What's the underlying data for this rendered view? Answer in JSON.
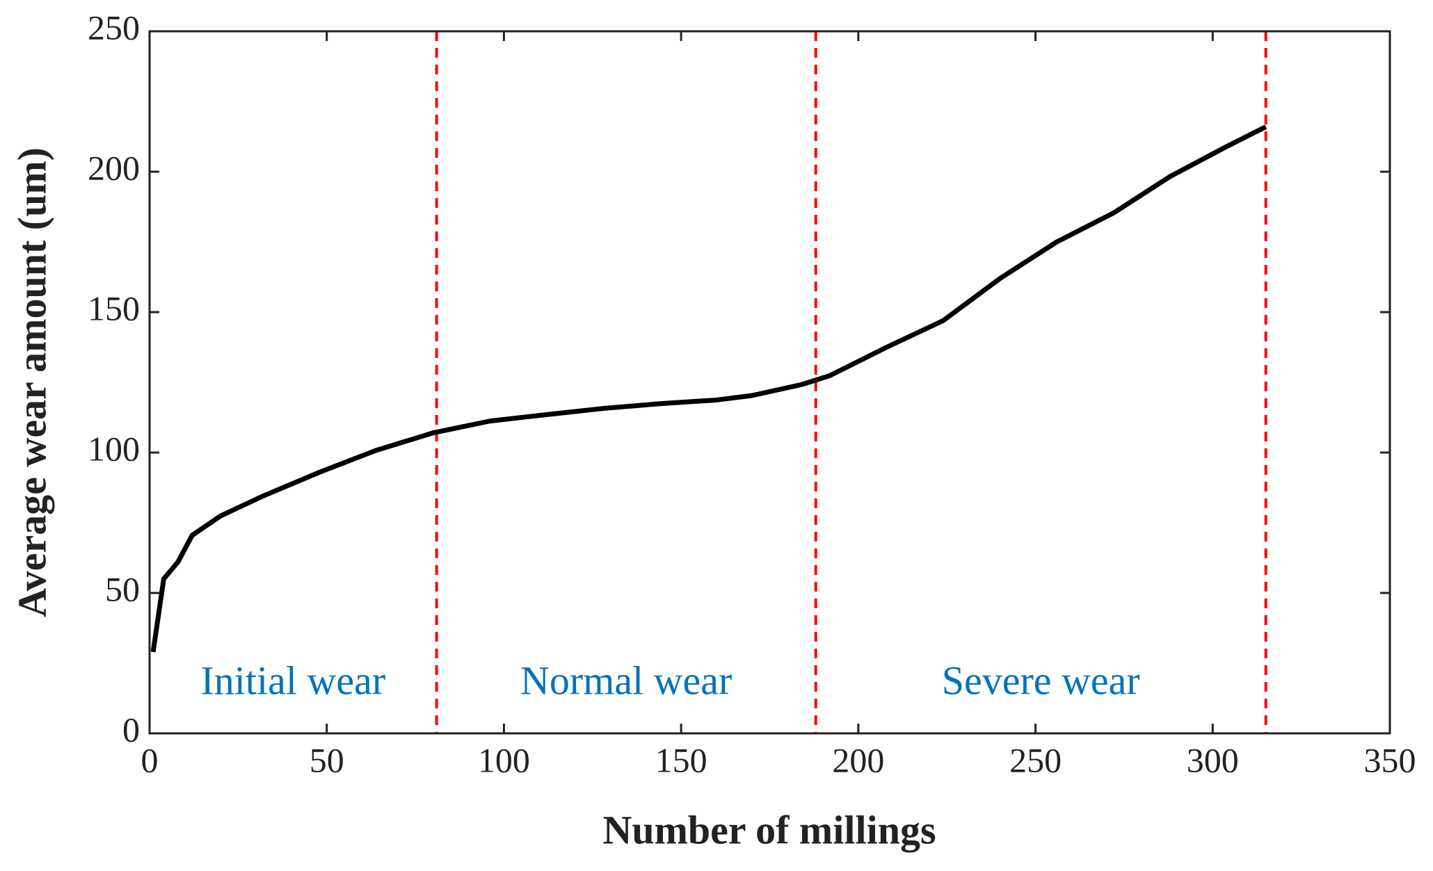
{
  "chart_data": {
    "type": "line",
    "x_label": "Number of millings",
    "y_label": "Average wear amount (um)",
    "x": [
      1,
      4,
      8,
      12,
      20,
      32,
      48,
      64,
      80,
      96,
      112,
      128,
      144,
      160,
      170,
      184,
      192,
      208,
      224,
      240,
      256,
      272,
      288,
      304,
      315
    ],
    "series": [
      {
        "color": "#000000",
        "values": [
          29,
          55,
          61,
          70.5,
          77.4,
          84.5,
          93,
          100.8,
          107,
          111.2,
          113.5,
          115.7,
          117.4,
          118.7,
          120.3,
          124.2,
          127.4,
          137.5,
          147,
          162,
          175,
          185.3,
          198.3,
          209,
          216
        ]
      }
    ],
    "vlines": [
      81,
      188,
      315
    ],
    "vline_color": "#ff0000",
    "annotations": [
      "Initial wear",
      "Normal wear",
      "Severe wear"
    ],
    "annotation_color": "#0072bd",
    "xlim": [
      0,
      350
    ],
    "xticks": [
      0,
      50,
      100,
      150,
      200,
      250,
      300,
      350
    ],
    "ylim": [
      0,
      250
    ],
    "yticks": [
      0,
      50,
      100,
      150,
      200,
      250
    ],
    "grid": false
  }
}
